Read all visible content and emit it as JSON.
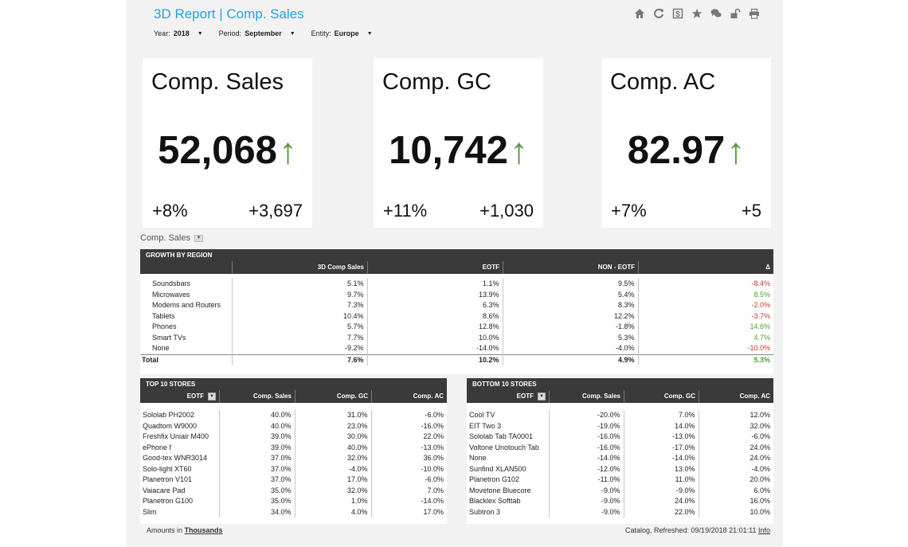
{
  "header": {
    "title": "3D Report | Comp. Sales",
    "filters": [
      {
        "label": "Year:",
        "value": "2018"
      },
      {
        "label": "Period:",
        "value": "September"
      },
      {
        "label": "Entity:",
        "value": "Europe"
      }
    ],
    "icons": [
      "home-icon",
      "refresh-icon",
      "dollar-icon",
      "star-icon",
      "comment-icon",
      "unlock-icon",
      "print-icon"
    ]
  },
  "kpis": [
    {
      "title": "Comp. Sales",
      "value": "52,068",
      "arrow": "↑",
      "pct": "+8%",
      "abs": "+3,697"
    },
    {
      "title": "Comp. GC",
      "value": "10,742",
      "arrow": "↑",
      "pct": "+11%",
      "abs": "+1,030"
    },
    {
      "title": "Comp. AC",
      "value": "82.97",
      "arrow": "↑",
      "pct": "+7%",
      "abs": "+5"
    }
  ],
  "section": {
    "label": "Comp. Sales"
  },
  "region": {
    "title": "GROWTH BY REGION",
    "columns": [
      "3D Comp Sales",
      "EOTF",
      "NON - EOTF",
      "Δ"
    ],
    "rows": [
      [
        "Soundsbars",
        "5.1%",
        "1.1%",
        "9.5%",
        "-8.4%"
      ],
      [
        "Microwaves",
        "9.7%",
        "13.9%",
        "5.4%",
        "8.5%"
      ],
      [
        "Modems and Routers",
        "7.3%",
        "6.3%",
        "8.3%",
        "-2.0%"
      ],
      [
        "Tablets",
        "10.4%",
        "8.6%",
        "12.2%",
        "-3.7%"
      ],
      [
        "Phones",
        "5.7%",
        "12.8%",
        "-1.8%",
        "14.6%"
      ],
      [
        "Smart TVs",
        "7.7%",
        "10.0%",
        "5.3%",
        "4.7%"
      ],
      [
        "None",
        "-9.2%",
        "-14.0%",
        "-4.0%",
        "-10.0%"
      ]
    ],
    "total": [
      "Total",
      "7.6%",
      "10.2%",
      "4.9%",
      "5.3%"
    ]
  },
  "top_stores": {
    "title": "TOP 10 STORES",
    "columns": [
      "EOTF",
      "Comp. Sales",
      "Comp. GC",
      "Comp. AC"
    ],
    "rows": [
      [
        "Sololab PH2002",
        "40.0%",
        "31.0%",
        "-6.0%"
      ],
      [
        "Quadtom W9000",
        "40.0%",
        "23.0%",
        "-16.0%"
      ],
      [
        "Freshfix Uniair M400",
        "39.0%",
        "30.0%",
        "22.0%"
      ],
      [
        "ePhone f",
        "39.0%",
        "40.0%",
        "-13.0%"
      ],
      [
        "Good-tex WNR3014",
        "37.0%",
        "32.0%",
        "36.0%"
      ],
      [
        "Solo-light XT60",
        "37.0%",
        "-4.0%",
        "-10.0%"
      ],
      [
        "Planetron V101",
        "37.0%",
        "17.0%",
        "-6.0%"
      ],
      [
        "Vaiacare Pad",
        "35.0%",
        "32.0%",
        "7.0%"
      ],
      [
        "Planetron G100",
        "35.0%",
        "1.0%",
        "-14.0%"
      ],
      [
        "Slim",
        "34.0%",
        "4.0%",
        "17.0%"
      ]
    ]
  },
  "bottom_stores": {
    "title": "BOTTOM 10 STORES",
    "columns": [
      "EOTF",
      "Comp. Sales",
      "Comp. GC",
      "Comp. AC"
    ],
    "rows": [
      [
        "Cool TV",
        "-20.0%",
        "7.0%",
        "12.0%"
      ],
      [
        "EIT Two 3",
        "-19.0%",
        "14.0%",
        "32.0%"
      ],
      [
        "Sololab Tab TA0001",
        "-16.0%",
        "-13.0%",
        "-6.0%"
      ],
      [
        "Voltone Unotouch Tab",
        "-16.0%",
        "-17.0%",
        "24.0%"
      ],
      [
        "None",
        "-14.0%",
        "-14.0%",
        "24.0%"
      ],
      [
        "Sunfind XLAN500",
        "-12.0%",
        "13.0%",
        "-4.0%"
      ],
      [
        "Planetron G102",
        "-11.0%",
        "11.0%",
        "20.0%"
      ],
      [
        "Movetone Bluecore",
        "-9.0%",
        "-9.0%",
        "6.0%"
      ],
      [
        "Blacklex Softtab",
        "-9.0%",
        "24.0%",
        "16.0%"
      ],
      [
        "Subtron 3",
        "-9.0%",
        "22.0%",
        "10.0%"
      ]
    ]
  },
  "footer": {
    "amounts_prefix": "Amounts in",
    "amounts_link": "Thousands",
    "refresh": "Catalog, Refreshed: 09/19/2018 21:01:11",
    "info_link": "Info"
  }
}
